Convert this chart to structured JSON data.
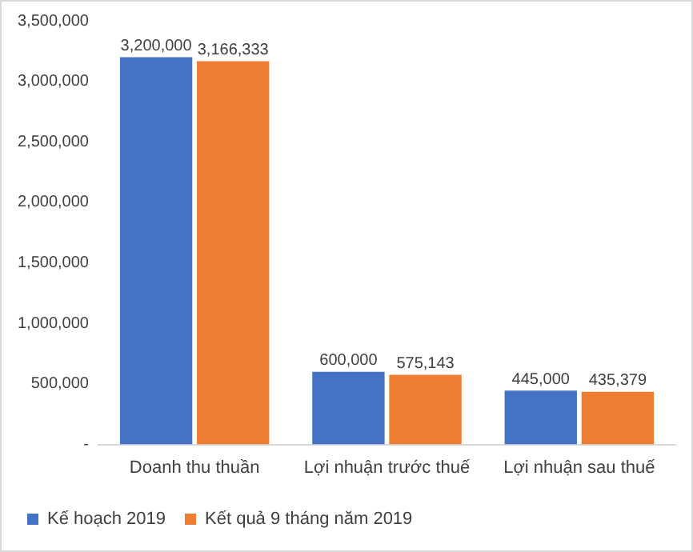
{
  "chart_data": {
    "type": "bar",
    "categories": [
      "Doanh thu thuần",
      "Lợi nhuận trước thuế",
      "Lợi nhuận sau thuế"
    ],
    "series": [
      {
        "name": "Kế hoạch 2019",
        "color": "#4472c4",
        "values": [
          3200000,
          600000,
          445000
        ],
        "value_labels": [
          "3,200,000",
          "600,000",
          "445,000"
        ]
      },
      {
        "name": "Kết quả 9 tháng năm 2019",
        "color": "#ed7d31",
        "values": [
          3166333,
          575143,
          435379
        ],
        "value_labels": [
          "3,166,333",
          "575,143",
          "435,379"
        ]
      }
    ],
    "ylim": [
      0,
      3500000
    ],
    "yticks": [
      {
        "value": 0,
        "label": "-"
      },
      {
        "value": 500000,
        "label": "500,000"
      },
      {
        "value": 1000000,
        "label": "1,000,000"
      },
      {
        "value": 1500000,
        "label": "1,500,000"
      },
      {
        "value": 2000000,
        "label": "2,000,000"
      },
      {
        "value": 2500000,
        "label": "2,500,000"
      },
      {
        "value": 3000000,
        "label": "3,000,000"
      },
      {
        "value": 3500000,
        "label": "3,500,000"
      }
    ],
    "grid": false,
    "legend": "bottom"
  }
}
